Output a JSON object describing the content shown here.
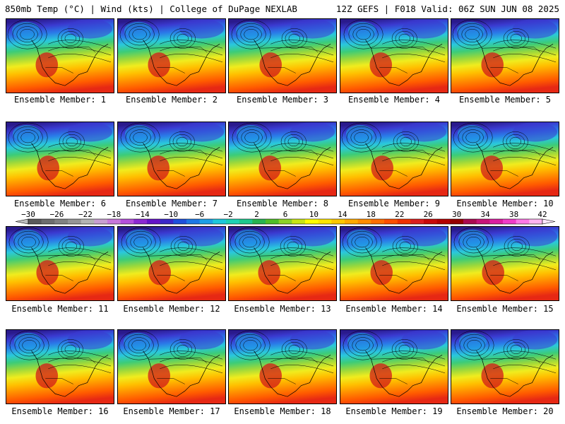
{
  "header": {
    "left": "850mb Temp (°C) | Wind (kts) | College of DuPage NEXLAB",
    "right": "12Z GEFS | F018 Valid: 06Z SUN JUN 08 2025"
  },
  "panels": [
    {
      "label": "Ensemble Member: 1"
    },
    {
      "label": "Ensemble Member: 2"
    },
    {
      "label": "Ensemble Member: 3"
    },
    {
      "label": "Ensemble Member: 4"
    },
    {
      "label": "Ensemble Member: 5"
    },
    {
      "label": "Ensemble Member: 6"
    },
    {
      "label": "Ensemble Member: 7"
    },
    {
      "label": "Ensemble Member: 8"
    },
    {
      "label": "Ensemble Member: 9"
    },
    {
      "label": "Ensemble Member: 10"
    },
    {
      "label": "Ensemble Member: 11"
    },
    {
      "label": "Ensemble Member: 12"
    },
    {
      "label": "Ensemble Member: 13"
    },
    {
      "label": "Ensemble Member: 14"
    },
    {
      "label": "Ensemble Member: 15"
    },
    {
      "label": "Ensemble Member: 16"
    },
    {
      "label": "Ensemble Member: 17"
    },
    {
      "label": "Ensemble Member: 18"
    },
    {
      "label": "Ensemble Member: 19"
    },
    {
      "label": "Ensemble Member: 20"
    }
  ],
  "colorbar": {
    "labels": [
      "−30",
      "−26",
      "−22",
      "−18",
      "−14",
      "−10",
      "−6",
      "−2",
      "2",
      "6",
      "10",
      "14",
      "18",
      "22",
      "26",
      "30",
      "34",
      "38",
      "42"
    ],
    "colors": [
      "#5a5a5a",
      "#6e6e6e",
      "#828282",
      "#969696",
      "#b4b4b4",
      "#c8a0d2",
      "#c878dc",
      "#b450dc",
      "#8c28d2",
      "#6414c8",
      "#3c28c8",
      "#1e50dc",
      "#1e78e6",
      "#1ea0e6",
      "#1ec8dc",
      "#1ed2b4",
      "#1ec88c",
      "#28b450",
      "#50be28",
      "#8cd228",
      "#c8e614",
      "#ffff00",
      "#ffe600",
      "#ffc800",
      "#ffaa00",
      "#ff8c00",
      "#ff6e00",
      "#ff5000",
      "#f03200",
      "#dc1e1e",
      "#c80a0a",
      "#b40000",
      "#960000",
      "#aa0a50",
      "#c81478",
      "#dc1ea0",
      "#f03cc8",
      "#ff78e6",
      "#ffb4f0"
    ]
  },
  "map": {
    "gradient": [
      "#2a1a8c",
      "#3a3ad0",
      "#2a7ae8",
      "#2ac8dc",
      "#3ccc78",
      "#9ad83c",
      "#f0ec1e",
      "#ffc000",
      "#ff8c00",
      "#ff5a00",
      "#e62814"
    ]
  }
}
